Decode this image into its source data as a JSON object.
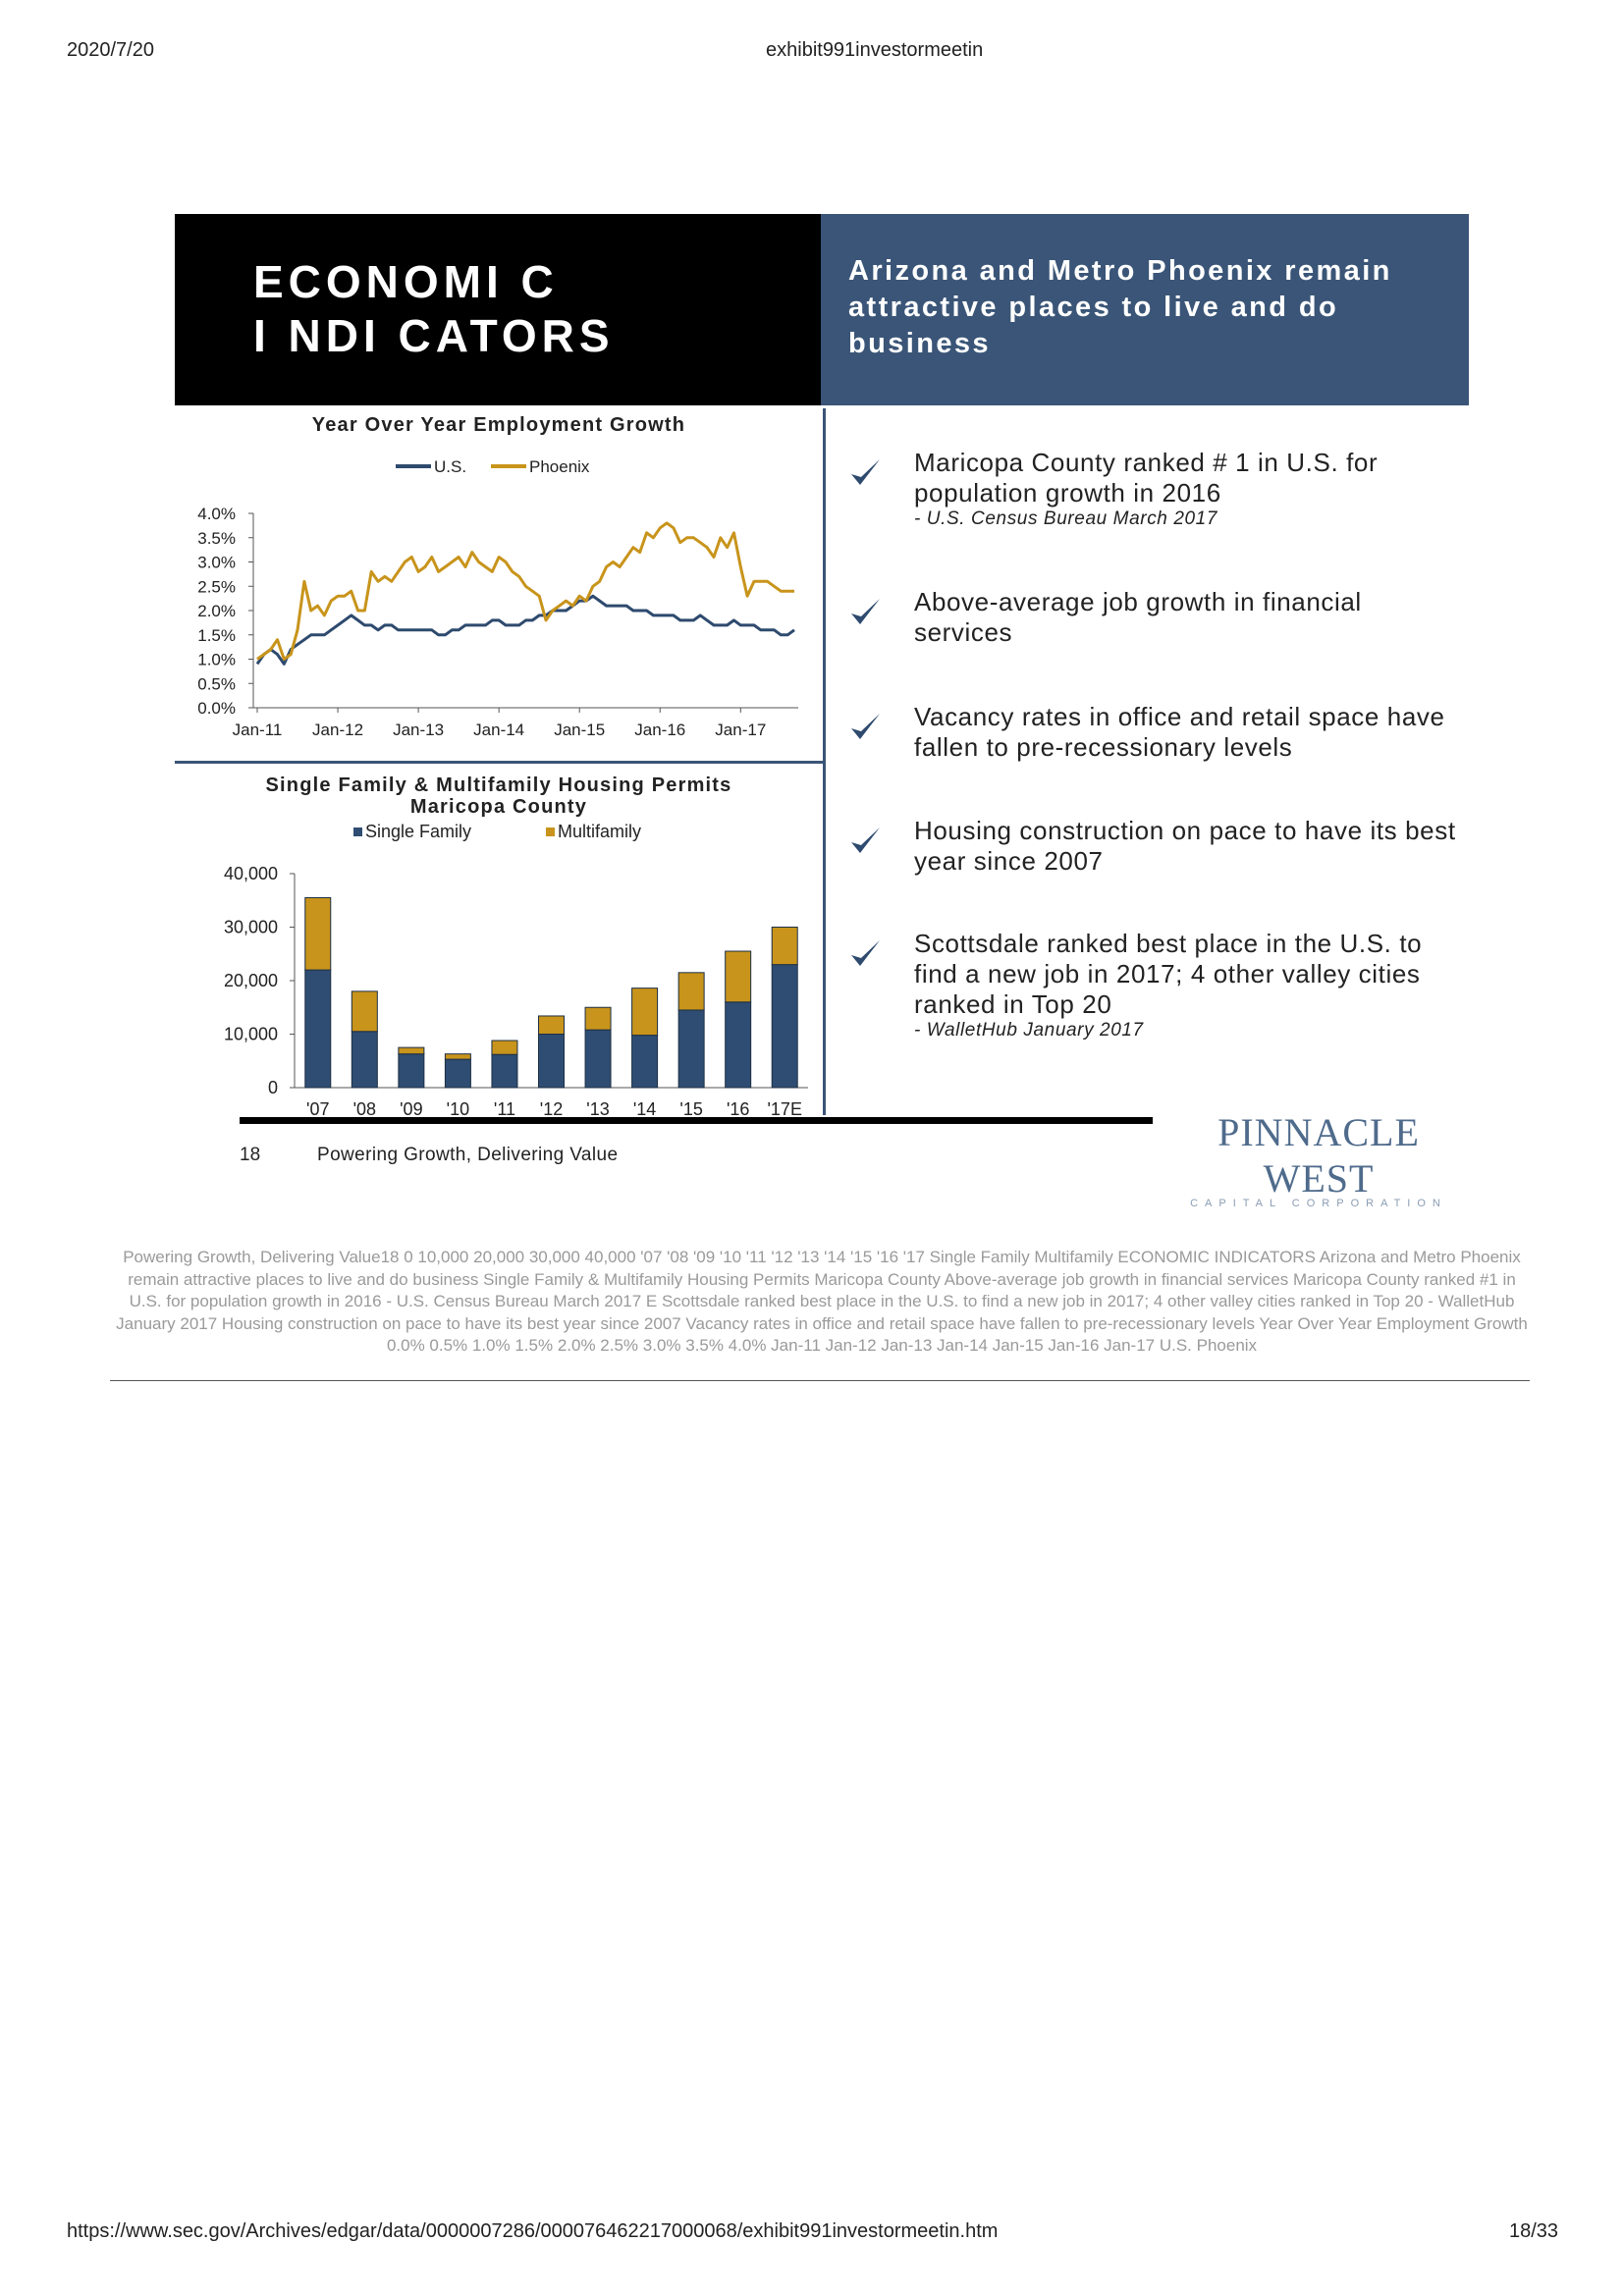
{
  "browser": {
    "date": "2020/7/20",
    "doc_title": "exhibit991investormeetin",
    "url": "https://www.sec.gov/Archives/edgar/data/0000007286/000076462217000068/exhibit991investormeetin.htm",
    "page": "18/33"
  },
  "slide": {
    "title": "ECONOMI C\nI NDI CATORS",
    "subtitle": "Arizona and Metro Phoenix remain attractive places to live and do business",
    "bullets": [
      {
        "text": "Maricopa County ranked # 1 in U.S. for population growth in 2016",
        "source": "- U.S. Census Bureau March 2017"
      },
      {
        "text": "Above-average job growth in financial services",
        "source": ""
      },
      {
        "text": "Vacancy rates in office and retail space have fallen to pre-recessionary levels",
        "source": ""
      },
      {
        "text": "Housing construction on pace to have its best year since 2007",
        "source": ""
      },
      {
        "text": "Scottsdale ranked best place in the U.S. to find a new job in 2017; 4 other valley cities ranked in Top 20",
        "source": "- WalletHub January 2017"
      }
    ],
    "page_number": "18",
    "tagline": "Powering Growth, Delivering Value",
    "logo_main": "PINNACLE WEST",
    "logo_sub": "CAPITAL CORPORATION",
    "colors": {
      "us_line": "#2e4a6e",
      "phoenix_line": "#c8941b",
      "single_family": "#2f4d72",
      "multifamily": "#c8941b",
      "header_blue": "#3a5577"
    }
  },
  "ocr_text": "Powering Growth, Delivering Value18 0 10,000 20,000 30,000 40,000 '07 '08 '09 '10 '11 '12 '13 '14 '15 '16 '17 Single Family Multifamily ECONOMIC  INDICATORS Arizona and Metro Phoenix remain  attractive places to live and do  business Single Family & Multifamily Housing Permits Maricopa County Above-average job growth in financial  services Maricopa County ranked #1 in U.S. for  population growth in 2016 - U.S. Census Bureau March 2017 E Scottsdale ranked best place in the  U.S. to find a new job in 2017;  4 other valley cities ranked in Top 20 - WalletHub January 2017 Housing construction on pace to have  its best year since 2007 Vacancy rates in office and retail space  have fallen to pre-recessionary levels Year Over Year Employment Growth 0.0% 0.5% 1.0% 1.5% 2.0% 2.5% 3.0% 3.5% 4.0% Jan-11 Jan-12 Jan-13 Jan-14 Jan-15 Jan-16 Jan-17 U.S. Phoenix",
  "chart_data": [
    {
      "type": "line",
      "title": "Year Over Year Employment Growth",
      "ylim": [
        0,
        4.0
      ],
      "yticks": [
        "0.0%",
        "0.5%",
        "1.0%",
        "1.5%",
        "2.0%",
        "2.5%",
        "3.0%",
        "3.5%",
        "4.0%"
      ],
      "xticks": [
        "Jan-11",
        "Jan-12",
        "Jan-13",
        "Jan-14",
        "Jan-15",
        "Jan-16",
        "Jan-17"
      ],
      "x_start": "Jan-11",
      "legend": "top-center",
      "series": [
        {
          "name": "U.S.",
          "color": "#2e4a6e",
          "values": [
            0.9,
            1.1,
            1.2,
            1.1,
            0.9,
            1.2,
            1.3,
            1.4,
            1.5,
            1.5,
            1.5,
            1.6,
            1.7,
            1.8,
            1.9,
            1.8,
            1.7,
            1.7,
            1.6,
            1.7,
            1.7,
            1.6,
            1.6,
            1.6,
            1.6,
            1.6,
            1.6,
            1.5,
            1.5,
            1.6,
            1.6,
            1.7,
            1.7,
            1.7,
            1.7,
            1.8,
            1.8,
            1.7,
            1.7,
            1.7,
            1.8,
            1.8,
            1.9,
            1.9,
            2.0,
            2.0,
            2.0,
            2.1,
            2.2,
            2.2,
            2.3,
            2.2,
            2.1,
            2.1,
            2.1,
            2.1,
            2.0,
            2.0,
            2.0,
            1.9,
            1.9,
            1.9,
            1.9,
            1.8,
            1.8,
            1.8,
            1.9,
            1.8,
            1.7,
            1.7,
            1.7,
            1.8,
            1.7,
            1.7,
            1.7,
            1.6,
            1.6,
            1.6,
            1.5,
            1.5,
            1.6
          ]
        },
        {
          "name": "Phoenix",
          "color": "#c8941b",
          "values": [
            1.0,
            1.1,
            1.2,
            1.4,
            1.0,
            1.1,
            1.6,
            2.6,
            2.0,
            2.1,
            1.9,
            2.2,
            2.3,
            2.3,
            2.4,
            2.0,
            2.0,
            2.8,
            2.6,
            2.7,
            2.6,
            2.8,
            3.0,
            3.1,
            2.8,
            2.9,
            3.1,
            2.8,
            2.9,
            3.0,
            3.1,
            2.9,
            3.2,
            3.0,
            2.9,
            2.8,
            3.1,
            3.0,
            2.8,
            2.7,
            2.5,
            2.4,
            2.3,
            1.8,
            2.0,
            2.1,
            2.2,
            2.1,
            2.3,
            2.2,
            2.5,
            2.6,
            2.9,
            3.0,
            2.9,
            3.1,
            3.3,
            3.2,
            3.6,
            3.5,
            3.7,
            3.8,
            3.7,
            3.4,
            3.5,
            3.5,
            3.4,
            3.3,
            3.1,
            3.5,
            3.3,
            3.6,
            2.9,
            2.3,
            2.6,
            2.6,
            2.6,
            2.5,
            2.4,
            2.4,
            2.4
          ]
        }
      ]
    },
    {
      "type": "bar",
      "title": "Single Family & Multifamily Housing Permits",
      "subtitle": "Maricopa County",
      "categories": [
        "'07",
        "'08",
        "'09",
        "'10",
        "'11",
        "'12",
        "'13",
        "'14",
        "'15",
        "'16",
        "'17E"
      ],
      "ylim": [
        0,
        40000
      ],
      "yticks": [
        "0",
        "10,000",
        "20,000",
        "30,000",
        "40,000"
      ],
      "stacked": true,
      "legend": "top-center",
      "series": [
        {
          "name": "Single Family",
          "color": "#2f4d72",
          "values": [
            22000,
            10500,
            6300,
            5300,
            6200,
            10000,
            10800,
            9800,
            14500,
            16000,
            23000
          ]
        },
        {
          "name": "Multifamily",
          "color": "#c8941b",
          "values": [
            13500,
            7500,
            1200,
            1000,
            2600,
            3400,
            4200,
            8800,
            7000,
            9500,
            7000
          ]
        }
      ]
    }
  ]
}
